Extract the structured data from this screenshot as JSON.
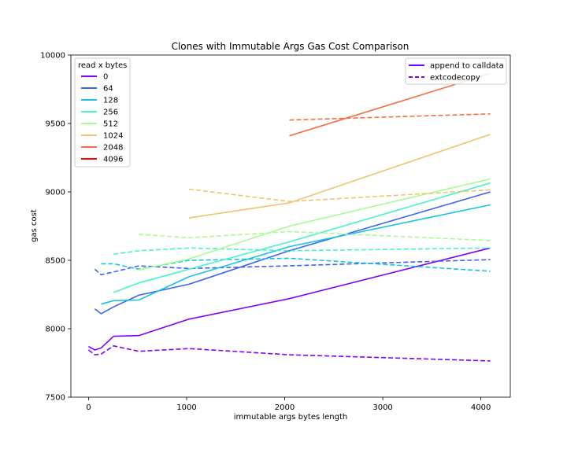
{
  "chart_data": {
    "type": "line",
    "title": "Clones with Immutable Args Gas Cost Comparison",
    "xlabel": "immutable args bytes length",
    "ylabel": "gas cost",
    "xlim": [
      -180,
      4300
    ],
    "ylim": [
      7500,
      10000
    ],
    "xticks": [
      "0",
      "1000",
      "2000",
      "3000",
      "4000"
    ],
    "xtick_values": [
      0,
      1000,
      2000,
      3000,
      4000
    ],
    "yticks": [
      "7500",
      "8000",
      "8500",
      "9000",
      "9500",
      "10000"
    ],
    "ytick_values": [
      7500,
      8000,
      8500,
      9000,
      9500,
      10000
    ],
    "grid": false,
    "legend_read": {
      "title": "read x bytes",
      "placement": "top-left",
      "entries": [
        {
          "label": "0",
          "color": "#7f00ff"
        },
        {
          "label": "64",
          "color": "#3d62f5"
        },
        {
          "label": "128",
          "color": "#16c4e2"
        },
        {
          "label": "256",
          "color": "#48f3c7"
        },
        {
          "label": "512",
          "color": "#a7fb91"
        },
        {
          "label": "1024",
          "color": "#eec471"
        },
        {
          "label": "2048",
          "color": "#f56e43"
        },
        {
          "label": "4096",
          "color": "#ff0000"
        }
      ]
    },
    "legend_method": {
      "placement": "top-right",
      "entries": [
        {
          "label": "append to calldata",
          "style": "solid"
        },
        {
          "label": "extcodecopy",
          "style": "dashed"
        }
      ]
    },
    "series": [
      {
        "read": "0",
        "method": "append to calldata",
        "color": "#7f00ff",
        "x": [
          0,
          64,
          128,
          256,
          512,
          1024,
          2048,
          4096
        ],
        "y": [
          7870,
          7845,
          7860,
          7945,
          7950,
          8070,
          8220,
          8590
        ]
      },
      {
        "read": "0",
        "method": "extcodecopy",
        "color": "#7f00ff",
        "x": [
          0,
          64,
          128,
          256,
          512,
          1024,
          2048,
          4096
        ],
        "y": [
          7845,
          7810,
          7815,
          7875,
          7835,
          7855,
          7810,
          7765
        ]
      },
      {
        "read": "64",
        "method": "append to calldata",
        "color": "#3d62f5",
        "x": [
          64,
          128,
          256,
          512,
          1024,
          2048,
          4096
        ],
        "y": [
          8145,
          8110,
          8160,
          8245,
          8325,
          8570,
          9000
        ]
      },
      {
        "read": "64",
        "method": "extcodecopy",
        "color": "#3d62f5",
        "x": [
          64,
          128,
          256,
          512,
          1024,
          2048,
          4096
        ],
        "y": [
          8435,
          8395,
          8415,
          8460,
          8440,
          8460,
          8505
        ]
      },
      {
        "read": "128",
        "method": "append to calldata",
        "color": "#16c4e2",
        "x": [
          128,
          256,
          512,
          1024,
          2048,
          4096
        ],
        "y": [
          8180,
          8205,
          8210,
          8380,
          8600,
          8905
        ]
      },
      {
        "read": "128",
        "method": "extcodecopy",
        "color": "#16c4e2",
        "x": [
          128,
          256,
          512,
          1024,
          2048,
          4096
        ],
        "y": [
          8475,
          8475,
          8435,
          8500,
          8515,
          8420
        ]
      },
      {
        "read": "256",
        "method": "append to calldata",
        "color": "#48f3c7",
        "x": [
          256,
          512,
          1024,
          2048,
          4096
        ],
        "y": [
          8265,
          8335,
          8435,
          8635,
          9065
        ]
      },
      {
        "read": "256",
        "method": "extcodecopy",
        "color": "#48f3c7",
        "x": [
          256,
          512,
          1024,
          2048,
          4096
        ],
        "y": [
          8545,
          8570,
          8590,
          8570,
          8590
        ]
      },
      {
        "read": "512",
        "method": "append to calldata",
        "color": "#a7fb91",
        "x": [
          512,
          1024,
          2048,
          4096
        ],
        "y": [
          8430,
          8510,
          8750,
          9095
        ]
      },
      {
        "read": "512",
        "method": "extcodecopy",
        "color": "#a7fb91",
        "x": [
          512,
          1024,
          2048,
          4096
        ],
        "y": [
          8690,
          8665,
          8710,
          8645
        ]
      },
      {
        "read": "1024",
        "method": "append to calldata",
        "color": "#eec471",
        "x": [
          1024,
          2048,
          4096
        ],
        "y": [
          8810,
          8920,
          9420
        ]
      },
      {
        "read": "1024",
        "method": "extcodecopy",
        "color": "#eec471",
        "x": [
          1024,
          2048,
          4096
        ],
        "y": [
          9020,
          8930,
          9015
        ]
      },
      {
        "read": "2048",
        "method": "append to calldata",
        "color": "#f56e43",
        "x": [
          2048,
          4096
        ],
        "y": [
          9410,
          9865
        ]
      },
      {
        "read": "2048",
        "method": "extcodecopy",
        "color": "#f56e43",
        "x": [
          2048,
          4096
        ],
        "y": [
          9525,
          9570
        ]
      }
    ]
  }
}
